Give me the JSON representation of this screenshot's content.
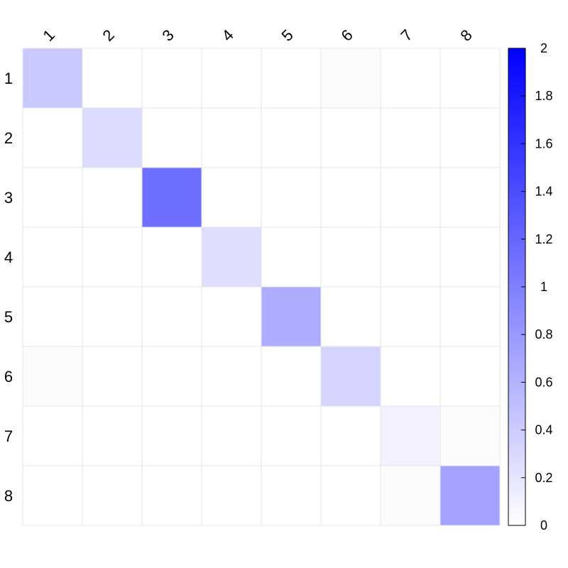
{
  "chart_data": {
    "type": "heatmap",
    "rows": [
      "1",
      "2",
      "3",
      "4",
      "5",
      "6",
      "7",
      "8"
    ],
    "columns": [
      "1",
      "2",
      "3",
      "4",
      "5",
      "6",
      "7",
      "8"
    ],
    "values": [
      [
        0.42,
        0,
        0,
        0,
        0,
        0.02,
        0,
        0
      ],
      [
        0,
        0.28,
        0,
        0,
        0,
        0,
        0,
        0
      ],
      [
        0,
        0,
        1.14,
        0,
        0,
        0,
        0,
        0
      ],
      [
        0,
        0,
        0,
        0.26,
        0,
        0,
        0,
        0
      ],
      [
        0,
        0,
        0,
        0,
        0.64,
        0,
        0,
        0
      ],
      [
        0.02,
        0,
        0,
        0,
        0,
        0.34,
        0,
        0
      ],
      [
        0,
        0,
        0,
        0,
        0,
        0,
        0.1,
        0.02
      ],
      [
        0,
        0,
        0,
        0,
        0,
        0,
        0.02,
        0.72
      ]
    ],
    "color_scale": {
      "min": 0,
      "max": 2,
      "low_color": "#ffffff",
      "high_color": "#0000ff"
    },
    "colorbar_ticks": [
      "0",
      "0.2",
      "0.4",
      "0.6",
      "0.8",
      "1",
      "1.2",
      "1.4",
      "1.6",
      "1.8",
      "2"
    ],
    "grid": true,
    "title": "",
    "xlabel": "",
    "ylabel": ""
  }
}
